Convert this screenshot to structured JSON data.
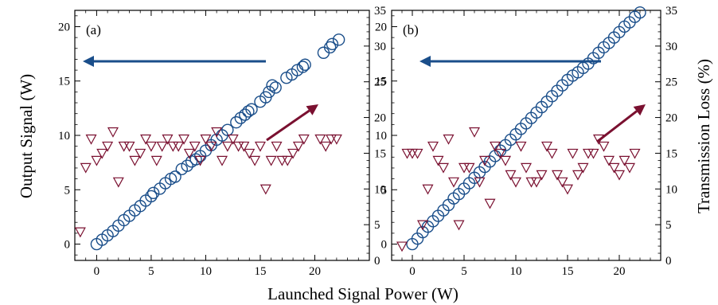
{
  "xlabel": "Launched Signal Power (W)",
  "ylabel_left": "Output Signal (W)",
  "ylabel_right": "Transmission Loss (%)",
  "colors": {
    "signal": "#1a4e8a",
    "loss": "#7a1030",
    "axis": "#000000"
  },
  "chart_data": [
    {
      "type": "scatter",
      "panel_label": "(a)",
      "xlim": [
        -2,
        25
      ],
      "ylim_left": [
        -1.5,
        21.5
      ],
      "ylim_right": [
        0,
        35
      ],
      "xticks": [
        0,
        5,
        10,
        15,
        20
      ],
      "yticks_left": [
        0,
        5,
        10,
        15,
        20
      ],
      "yticks_right": [
        0,
        5,
        10,
        15,
        20,
        25,
        30,
        35
      ],
      "grid": false,
      "series": [
        {
          "marker": "circle",
          "axis": "left",
          "x": [
            0,
            0.5,
            1.0,
            1.5,
            2.0,
            2.5,
            3.0,
            3.5,
            4.0,
            4.5,
            5.0,
            5.2,
            5.8,
            6.3,
            6.8,
            7.2,
            7.8,
            8.3,
            8.7,
            9.1,
            9.5,
            10.0,
            10.5,
            11.0,
            11.5,
            12.0,
            12.8,
            13.2,
            13.6,
            13.9,
            14.2,
            15.0,
            15.5,
            15.8,
            16.1,
            16.4,
            17.4,
            17.9,
            18.4,
            18.9,
            19.1,
            20.8,
            21.4,
            21.6,
            22.2
          ],
          "y": [
            0,
            0.4,
            0.8,
            1.2,
            1.7,
            2.2,
            2.6,
            3.1,
            3.5,
            4.0,
            4.4,
            4.7,
            5.1,
            5.6,
            6.0,
            6.2,
            6.9,
            7.2,
            7.6,
            7.8,
            8.1,
            8.6,
            9.1,
            9.6,
            10.0,
            10.5,
            11.2,
            11.6,
            11.9,
            12.2,
            12.4,
            13.1,
            13.5,
            14.0,
            14.6,
            14.4,
            15.3,
            15.6,
            16.0,
            16.3,
            16.5,
            17.6,
            18.1,
            18.4,
            18.8
          ]
        },
        {
          "marker": "triangle-down",
          "axis": "right",
          "x": [
            -1.5,
            -1.0,
            -0.5,
            0.0,
            0.5,
            1.0,
            1.5,
            2.0,
            2.5,
            3.0,
            3.5,
            4.0,
            4.5,
            5.0,
            5.5,
            6.0,
            6.5,
            7.0,
            7.5,
            8.0,
            8.5,
            9.0,
            9.5,
            10.0,
            10.5,
            11.0,
            11.5,
            12.0,
            12.5,
            13.0,
            13.5,
            14.0,
            14.5,
            15.0,
            15.5,
            16.0,
            16.5,
            17.0,
            17.5,
            18.0,
            18.5,
            19.0,
            20.5,
            21.0,
            21.5,
            22.0
          ],
          "y": [
            4,
            13,
            17,
            14,
            15,
            16,
            18,
            11,
            16,
            16,
            14,
            15,
            17,
            16,
            14,
            16,
            17,
            16,
            16,
            17,
            15,
            16,
            14,
            17,
            16,
            18,
            14,
            16,
            17,
            16,
            16,
            15,
            14,
            16,
            10,
            14,
            16,
            14,
            14,
            15,
            16,
            17,
            17,
            16,
            17,
            17
          ]
        }
      ],
      "annotations": [
        "arrow pointing left toward output signal axis",
        "arrow pointing up-right toward transmission loss axis"
      ]
    },
    {
      "type": "scatter",
      "panel_label": "(b)",
      "xlim": [
        -2,
        24
      ],
      "ylim_left": [
        -1.5,
        21.5
      ],
      "ylim_right": [
        0,
        35
      ],
      "xticks": [
        0,
        5,
        10,
        15,
        20
      ],
      "yticks_left": [
        0,
        5,
        10,
        15,
        20
      ],
      "yticks_right": [
        0,
        5,
        10,
        15,
        20,
        25,
        30,
        35
      ],
      "grid": false,
      "series": [
        {
          "marker": "circle",
          "axis": "left",
          "x": [
            0,
            0.5,
            1.0,
            1.5,
            2.0,
            2.5,
            3.0,
            3.5,
            4.0,
            4.5,
            5.0,
            5.5,
            6.0,
            6.5,
            7.0,
            7.5,
            8.0,
            8.5,
            9.0,
            9.5,
            10.0,
            10.5,
            11.0,
            11.5,
            12.0,
            12.5,
            13.0,
            13.5,
            14.0,
            14.5,
            15.0,
            15.5,
            16.0,
            16.5,
            17.0,
            17.5,
            18.0,
            18.5,
            19.0,
            19.5,
            20.0,
            20.5,
            21.0,
            21.5,
            22.0
          ],
          "y": [
            0,
            0.5,
            1.1,
            1.6,
            2.1,
            2.6,
            3.1,
            3.6,
            4.2,
            4.6,
            5.1,
            5.6,
            6.1,
            6.6,
            7.1,
            7.6,
            8.1,
            8.6,
            9.1,
            9.6,
            10.1,
            10.6,
            11.1,
            11.6,
            12.1,
            12.6,
            13.1,
            13.6,
            14.1,
            14.6,
            15.1,
            15.5,
            15.8,
            16.2,
            16.6,
            17.1,
            17.6,
            18.1,
            18.5,
            19.0,
            19.5,
            20.0,
            20.4,
            20.9,
            21.3
          ]
        },
        {
          "marker": "triangle-down",
          "axis": "right",
          "x": [
            -1.0,
            -0.5,
            0.0,
            0.5,
            1.0,
            1.5,
            2.0,
            2.5,
            3.0,
            3.5,
            4.0,
            4.5,
            5.0,
            5.5,
            6.0,
            6.5,
            7.0,
            7.5,
            8.0,
            8.5,
            9.0,
            9.5,
            10.0,
            10.5,
            11.0,
            11.5,
            12.0,
            12.5,
            13.0,
            13.5,
            14.0,
            14.5,
            15.0,
            15.5,
            16.0,
            16.5,
            17.0,
            17.5,
            18.0,
            18.5,
            19.0,
            19.5,
            20.0,
            20.5,
            21.0,
            21.5
          ],
          "y": [
            2,
            15,
            15,
            15,
            5,
            10,
            16,
            14,
            13,
            17,
            11,
            5,
            13,
            13,
            18,
            11,
            14,
            8,
            16,
            15,
            14,
            12,
            11,
            16,
            13,
            11,
            11,
            12,
            16,
            15,
            12,
            11,
            10,
            15,
            12,
            13,
            15,
            15,
            17,
            16,
            14,
            13,
            12,
            14,
            13,
            15
          ]
        }
      ],
      "annotations": [
        "arrow pointing left toward output signal axis",
        "arrow pointing up-right toward transmission loss axis"
      ]
    }
  ]
}
